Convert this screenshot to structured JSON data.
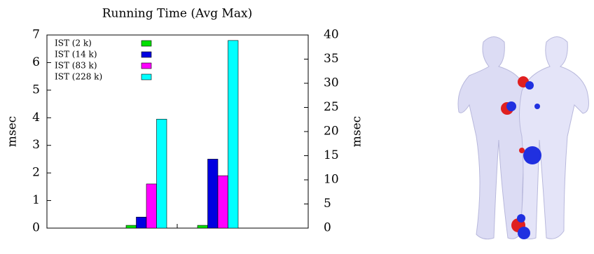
{
  "chart_data": {
    "type": "bar",
    "title": "Running Time (Avg Max)",
    "ylabel": "msec",
    "y2label": "msec",
    "categories": [
      null,
      null
    ],
    "series": [
      {
        "name": "IST (2 k)",
        "color": "#00e000",
        "values": [
          0.1,
          0.1
        ]
      },
      {
        "name": "IST (14 k)",
        "color": "#0000e0",
        "values": [
          0.4,
          2.5
        ]
      },
      {
        "name": "IST (83 k)",
        "color": "#ff00ff",
        "values": [
          1.6,
          1.9
        ]
      },
      {
        "name": "IST (228 k)",
        "color": "#00ffff",
        "values": [
          3.95,
          6.8
        ]
      }
    ],
    "ylim": [
      0,
      7
    ],
    "yticks": [
      0,
      1,
      2,
      3,
      4,
      5,
      6,
      7
    ],
    "y2lim": [
      0,
      40
    ],
    "y2ticks": [
      0,
      5,
      10,
      15,
      20,
      25,
      30,
      35,
      40
    ],
    "legend": "top-left"
  }
}
